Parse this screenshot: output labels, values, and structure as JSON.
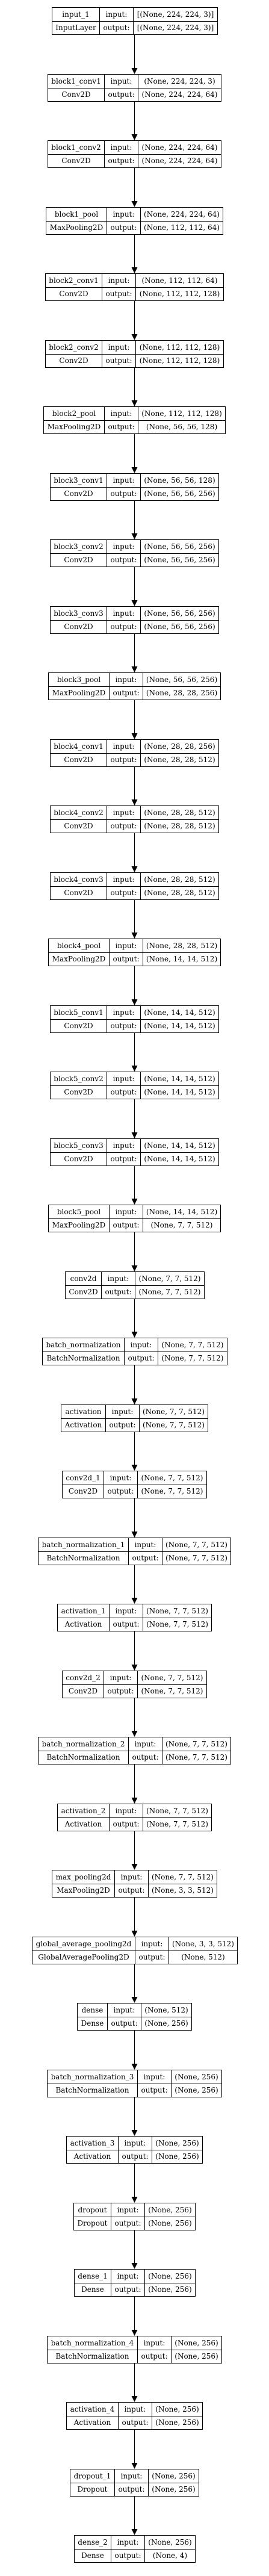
{
  "diagram": {
    "io_labels": {
      "input": "input:",
      "output": "output:"
    },
    "layers": [
      {
        "name": "input_1",
        "type": "InputLayer",
        "input": "[(None, 224, 224, 3)]",
        "output": "[(None, 224, 224, 3)]"
      },
      {
        "name": "block1_conv1",
        "type": "Conv2D",
        "input": "(None, 224, 224, 3)",
        "output": "(None, 224, 224, 64)"
      },
      {
        "name": "block1_conv2",
        "type": "Conv2D",
        "input": "(None, 224, 224, 64)",
        "output": "(None, 224, 224, 64)"
      },
      {
        "name": "block1_pool",
        "type": "MaxPooling2D",
        "input": "(None, 224, 224, 64)",
        "output": "(None, 112, 112, 64)"
      },
      {
        "name": "block2_conv1",
        "type": "Conv2D",
        "input": "(None, 112, 112, 64)",
        "output": "(None, 112, 112, 128)"
      },
      {
        "name": "block2_conv2",
        "type": "Conv2D",
        "input": "(None, 112, 112, 128)",
        "output": "(None, 112, 112, 128)"
      },
      {
        "name": "block2_pool",
        "type": "MaxPooling2D",
        "input": "(None, 112, 112, 128)",
        "output": "(None, 56, 56, 128)"
      },
      {
        "name": "block3_conv1",
        "type": "Conv2D",
        "input": "(None, 56, 56, 128)",
        "output": "(None, 56, 56, 256)"
      },
      {
        "name": "block3_conv2",
        "type": "Conv2D",
        "input": "(None, 56, 56, 256)",
        "output": "(None, 56, 56, 256)"
      },
      {
        "name": "block3_conv3",
        "type": "Conv2D",
        "input": "(None, 56, 56, 256)",
        "output": "(None, 56, 56, 256)"
      },
      {
        "name": "block3_pool",
        "type": "MaxPooling2D",
        "input": "(None, 56, 56, 256)",
        "output": "(None, 28, 28, 256)"
      },
      {
        "name": "block4_conv1",
        "type": "Conv2D",
        "input": "(None, 28, 28, 256)",
        "output": "(None, 28, 28, 512)"
      },
      {
        "name": "block4_conv2",
        "type": "Conv2D",
        "input": "(None, 28, 28, 512)",
        "output": "(None, 28, 28, 512)"
      },
      {
        "name": "block4_conv3",
        "type": "Conv2D",
        "input": "(None, 28, 28, 512)",
        "output": "(None, 28, 28, 512)"
      },
      {
        "name": "block4_pool",
        "type": "MaxPooling2D",
        "input": "(None, 28, 28, 512)",
        "output": "(None, 14, 14, 512)"
      },
      {
        "name": "block5_conv1",
        "type": "Conv2D",
        "input": "(None, 14, 14, 512)",
        "output": "(None, 14, 14, 512)"
      },
      {
        "name": "block5_conv2",
        "type": "Conv2D",
        "input": "(None, 14, 14, 512)",
        "output": "(None, 14, 14, 512)"
      },
      {
        "name": "block5_conv3",
        "type": "Conv2D",
        "input": "(None, 14, 14, 512)",
        "output": "(None, 14, 14, 512)"
      },
      {
        "name": "block5_pool",
        "type": "MaxPooling2D",
        "input": "(None, 14, 14, 512)",
        "output": "(None, 7, 7, 512)"
      },
      {
        "name": "conv2d",
        "type": "Conv2D",
        "input": "(None, 7, 7, 512)",
        "output": "(None, 7, 7, 512)"
      },
      {
        "name": "batch_normalization",
        "type": "BatchNormalization",
        "input": "(None, 7, 7, 512)",
        "output": "(None, 7, 7, 512)"
      },
      {
        "name": "activation",
        "type": "Activation",
        "input": "(None, 7, 7, 512)",
        "output": "(None, 7, 7, 512)"
      },
      {
        "name": "conv2d_1",
        "type": "Conv2D",
        "input": "(None, 7, 7, 512)",
        "output": "(None, 7, 7, 512)"
      },
      {
        "name": "batch_normalization_1",
        "type": "BatchNormalization",
        "input": "(None, 7, 7, 512)",
        "output": "(None, 7, 7, 512)"
      },
      {
        "name": "activation_1",
        "type": "Activation",
        "input": "(None, 7, 7, 512)",
        "output": "(None, 7, 7, 512)"
      },
      {
        "name": "conv2d_2",
        "type": "Conv2D",
        "input": "(None, 7, 7, 512)",
        "output": "(None, 7, 7, 512)"
      },
      {
        "name": "batch_normalization_2",
        "type": "BatchNormalization",
        "input": "(None, 7, 7, 512)",
        "output": "(None, 7, 7, 512)"
      },
      {
        "name": "activation_2",
        "type": "Activation",
        "input": "(None, 7, 7, 512)",
        "output": "(None, 7, 7, 512)"
      },
      {
        "name": "max_pooling2d",
        "type": "MaxPooling2D",
        "input": "(None, 7, 7, 512)",
        "output": "(None, 3, 3, 512)"
      },
      {
        "name": "global_average_pooling2d",
        "type": "GlobalAveragePooling2D",
        "input": "(None, 3, 3, 512)",
        "output": "(None, 512)"
      },
      {
        "name": "dense",
        "type": "Dense",
        "input": "(None, 512)",
        "output": "(None, 256)"
      },
      {
        "name": "batch_normalization_3",
        "type": "BatchNormalization",
        "input": "(None, 256)",
        "output": "(None, 256)"
      },
      {
        "name": "activation_3",
        "type": "Activation",
        "input": "(None, 256)",
        "output": "(None, 256)"
      },
      {
        "name": "dropout",
        "type": "Dropout",
        "input": "(None, 256)",
        "output": "(None, 256)"
      },
      {
        "name": "dense_1",
        "type": "Dense",
        "input": "(None, 256)",
        "output": "(None, 256)"
      },
      {
        "name": "batch_normalization_4",
        "type": "BatchNormalization",
        "input": "(None, 256)",
        "output": "(None, 256)"
      },
      {
        "name": "activation_4",
        "type": "Activation",
        "input": "(None, 256)",
        "output": "(None, 256)"
      },
      {
        "name": "dropout_1",
        "type": "Dropout",
        "input": "(None, 256)",
        "output": "(None, 256)"
      },
      {
        "name": "dense_2",
        "type": "Dense",
        "input": "(None, 256)",
        "output": "(None, 4)"
      }
    ]
  }
}
